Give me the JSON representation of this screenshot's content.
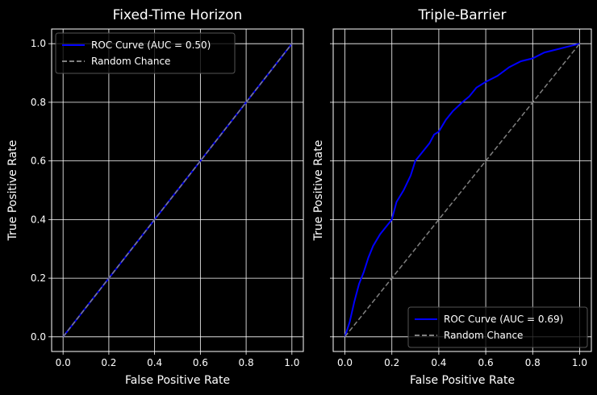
{
  "chart_data": [
    {
      "type": "line",
      "title": "Fixed-Time Horizon",
      "xlabel": "False Positive Rate",
      "ylabel": "True Positive Rate",
      "xlim": [
        -0.05,
        1.05
      ],
      "ylim": [
        -0.05,
        1.05
      ],
      "xticks": [
        "0.0",
        "0.2",
        "0.4",
        "0.6",
        "0.8",
        "1.0"
      ],
      "yticks": [
        "0.0",
        "0.2",
        "0.4",
        "0.6",
        "0.8",
        "1.0"
      ],
      "grid": true,
      "legend_position": "upper-left",
      "series": [
        {
          "name": "ROC Curve (AUC = 0.50)",
          "color": "#0000ff",
          "style": "solid",
          "x": [
            0,
            0.05,
            0.1,
            0.2,
            0.3,
            0.4,
            0.5,
            0.6,
            0.7,
            0.8,
            0.9,
            1.0
          ],
          "y": [
            0,
            0.05,
            0.1,
            0.2,
            0.3,
            0.4,
            0.5,
            0.6,
            0.7,
            0.8,
            0.9,
            1.0
          ]
        },
        {
          "name": "Random Chance",
          "color": "#808080",
          "style": "dashed",
          "x": [
            0,
            1
          ],
          "y": [
            0,
            1
          ]
        }
      ]
    },
    {
      "type": "line",
      "title": "Triple-Barrier",
      "xlabel": "False Positive Rate",
      "ylabel": "True Positive Rate",
      "xlim": [
        -0.05,
        1.05
      ],
      "ylim": [
        -0.05,
        1.05
      ],
      "xticks": [
        "0.0",
        "0.2",
        "0.4",
        "0.6",
        "0.8",
        "1.0"
      ],
      "yticks": [
        "0.0",
        "0.2",
        "0.4",
        "0.6",
        "0.8",
        "1.0"
      ],
      "grid": true,
      "legend_position": "lower-right",
      "series": [
        {
          "name": "ROC Curve (AUC = 0.69)",
          "color": "#0000ff",
          "style": "solid",
          "x": [
            0,
            0.02,
            0.04,
            0.06,
            0.08,
            0.1,
            0.12,
            0.15,
            0.18,
            0.2,
            0.22,
            0.25,
            0.28,
            0.3,
            0.33,
            0.36,
            0.38,
            0.4,
            0.43,
            0.46,
            0.5,
            0.53,
            0.56,
            0.6,
            0.65,
            0.7,
            0.75,
            0.8,
            0.85,
            0.9,
            0.95,
            1.0
          ],
          "y": [
            0,
            0.05,
            0.12,
            0.18,
            0.22,
            0.27,
            0.31,
            0.35,
            0.38,
            0.4,
            0.46,
            0.5,
            0.55,
            0.6,
            0.63,
            0.66,
            0.69,
            0.7,
            0.74,
            0.77,
            0.8,
            0.82,
            0.85,
            0.87,
            0.89,
            0.92,
            0.94,
            0.95,
            0.97,
            0.98,
            0.99,
            1.0
          ]
        },
        {
          "name": "Random Chance",
          "color": "#808080",
          "style": "dashed",
          "x": [
            0,
            1
          ],
          "y": [
            0,
            1
          ]
        }
      ]
    }
  ]
}
